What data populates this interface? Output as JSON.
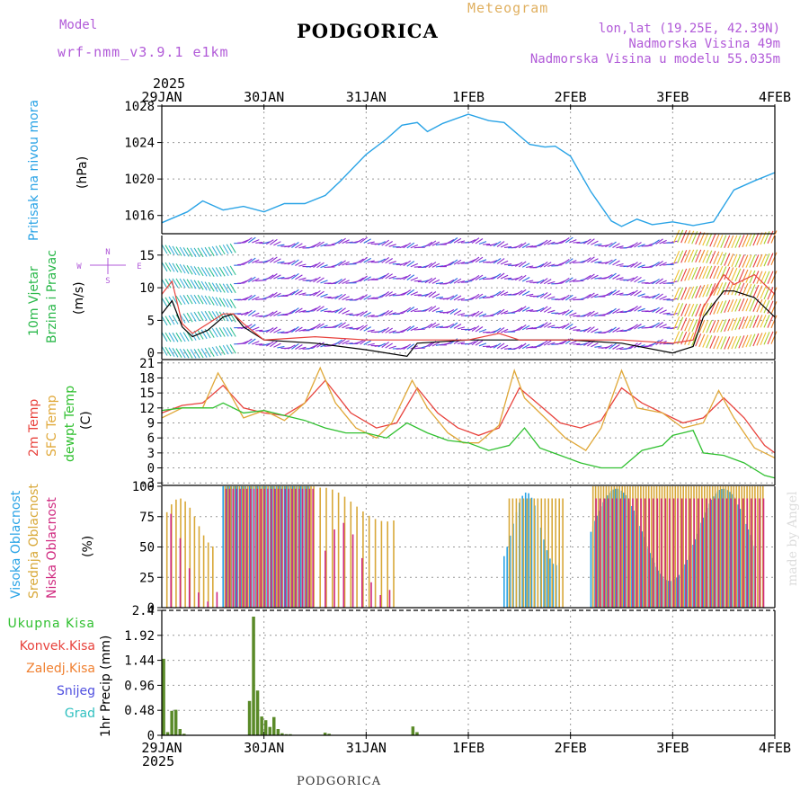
{
  "header": {
    "model_label": "Model",
    "model_name": "wrf-nmm_v3.9.1 e1km",
    "meteogram_label": "Meteogram",
    "station": "PODGORICA",
    "coords": "lon,lat (19.25E, 42.39N)",
    "altitude": "Nadmorska Visina 49m",
    "model_altitude": "Nadmorska Visina u modelu 55.035m",
    "year_top": "2025",
    "year_bottom": "2025",
    "footer_station": "PODGORICA",
    "watermark": "made by Angel"
  },
  "colors": {
    "pressure": "#29a3e6",
    "t2m": "#e8423c",
    "sfc": "#e0a838",
    "dew": "#30c030",
    "wind_speed": "#000000",
    "gust": "#e8423c",
    "high_cloud": "#29a3e6",
    "mid_cloud": "#d8a838",
    "low_cloud": "#d02a80",
    "precip_total": "#30c030",
    "precip_conv": "#e8423c",
    "precip_frz": "#f08030",
    "snow": "#5050e0",
    "graupel": "#30c0c0",
    "grid": "#999999"
  },
  "panels": {
    "pressure": {
      "ylabels": [
        "Pritisak na nivou mora",
        "(hPa)"
      ]
    },
    "wind": {
      "ylabels": [
        "10m Vjetar",
        "Brzina i Pravac",
        "(m/s)"
      ],
      "compass": {
        "N": "N",
        "S": "S",
        "E": "E",
        "W": "W"
      }
    },
    "temp": {
      "ylabels": [
        "2m Temp",
        "SFC Temp",
        "dewpt Temp",
        "(C)"
      ]
    },
    "cloud": {
      "ylabels": [
        "Visoka Oblacnost",
        "Srednja Oblacnost",
        "Niska Oblacnost",
        "(%)"
      ]
    },
    "precip": {
      "ylabels": [
        "1hr Precip (mm)"
      ],
      "legend": [
        "Ukupna Kisa",
        "Konvek.Kisa",
        "Zaledj.Kisa",
        "Snijeg",
        "Grad"
      ]
    }
  },
  "chart_data": [
    {
      "type": "line",
      "title": "Pritisak na nivou mora",
      "ylabel": "(hPa)",
      "x_ticks": [
        "29JAN",
        "30JAN",
        "31JAN",
        "1FEB",
        "2FEB",
        "3FEB",
        "4FEB"
      ],
      "ylim": [
        1014,
        1028
      ],
      "yticks": [
        1016,
        1020,
        1024,
        1028
      ],
      "x_days": [
        0,
        0.25,
        0.4,
        0.6,
        0.8,
        1.0,
        1.2,
        1.4,
        1.6,
        1.75,
        2.0,
        2.2,
        2.35,
        2.5,
        2.6,
        2.75,
        3.0,
        3.2,
        3.35,
        3.6,
        3.75,
        3.85,
        4.0,
        4.2,
        4.4,
        4.5,
        4.65,
        4.8,
        5.0,
        5.2,
        5.4,
        5.6,
        5.8,
        6.0
      ],
      "values": [
        1015.2,
        1016.4,
        1017.6,
        1016.6,
        1017.0,
        1016.4,
        1017.3,
        1017.3,
        1018.2,
        1019.8,
        1022.7,
        1024.4,
        1025.9,
        1026.2,
        1025.2,
        1026.1,
        1027.1,
        1026.4,
        1026.2,
        1023.8,
        1023.5,
        1023.6,
        1022.5,
        1018.6,
        1015.4,
        1014.8,
        1015.6,
        1015.0,
        1015.3,
        1014.9,
        1015.3,
        1018.8,
        1019.8,
        1020.7
      ]
    },
    {
      "type": "line",
      "title": "10m Vjetar Brzina i Pravac",
      "ylabel": "(m/s)",
      "ylim": [
        -1,
        18
      ],
      "yticks": [
        0,
        5,
        10,
        15
      ],
      "series": [
        {
          "name": "speed",
          "x_days": [
            0,
            0.1,
            0.2,
            0.3,
            0.45,
            0.6,
            0.7,
            0.8,
            1.0,
            1.5,
            2.0,
            2.4,
            2.5,
            3.0,
            3.5,
            4.0,
            4.5,
            5.0,
            5.2,
            5.3,
            5.5,
            5.6,
            5.8,
            6.0
          ],
          "values": [
            6.0,
            8.0,
            4.0,
            2.5,
            3.5,
            5.5,
            6.0,
            4.0,
            2.0,
            1.5,
            0.5,
            -0.5,
            1.5,
            2.0,
            2.0,
            2.0,
            1.5,
            0.0,
            1.0,
            5.5,
            9.5,
            9.5,
            8.5,
            5.5
          ]
        },
        {
          "name": "gust",
          "x_days": [
            0,
            0.1,
            0.2,
            0.3,
            0.45,
            0.6,
            0.7,
            0.8,
            1.0,
            1.5,
            2.0,
            2.5,
            3.0,
            3.3,
            3.5,
            4.0,
            4.5,
            5.0,
            5.2,
            5.3,
            5.5,
            5.6,
            5.8,
            6.0
          ],
          "values": [
            9.0,
            11.0,
            4.5,
            3.0,
            4.5,
            6.0,
            6.0,
            4.5,
            2.0,
            2.5,
            2.0,
            2.0,
            2.0,
            3.0,
            2.0,
            2.0,
            2.0,
            1.5,
            2.0,
            7.0,
            12.0,
            10.5,
            12.0,
            9.0
          ]
        }
      ]
    },
    {
      "type": "line",
      "title": "2m Temp / SFC Temp / dewpt Temp",
      "ylabel": "(C)",
      "ylim": [
        -3.5,
        21.5
      ],
      "yticks": [
        -3,
        0,
        3,
        6,
        9,
        12,
        15,
        18,
        21
      ],
      "series": [
        {
          "name": "2m Temp",
          "x_days": [
            0,
            0.2,
            0.4,
            0.6,
            0.8,
            1.0,
            1.2,
            1.4,
            1.6,
            1.85,
            2.1,
            2.3,
            2.5,
            2.7,
            2.9,
            3.1,
            3.3,
            3.5,
            3.7,
            3.9,
            4.1,
            4.3,
            4.5,
            4.7,
            4.9,
            5.1,
            5.3,
            5.5,
            5.7,
            5.9,
            6.0
          ],
          "values": [
            11.0,
            12.5,
            13.0,
            16.5,
            12.0,
            11.0,
            10.5,
            13.0,
            17.5,
            11.0,
            8.0,
            9.0,
            16.0,
            11.0,
            8.0,
            6.5,
            8.0,
            16.0,
            12.5,
            9.0,
            8.0,
            9.5,
            16.0,
            13.0,
            11.0,
            9.0,
            10.0,
            14.0,
            10.0,
            4.5,
            3.0
          ]
        },
        {
          "name": "SFC Temp",
          "x_days": [
            0,
            0.2,
            0.4,
            0.55,
            0.65,
            0.8,
            1.0,
            1.2,
            1.4,
            1.55,
            1.7,
            1.9,
            2.1,
            2.25,
            2.45,
            2.6,
            2.8,
            2.95,
            3.1,
            3.3,
            3.45,
            3.55,
            3.75,
            3.95,
            4.15,
            4.3,
            4.5,
            4.65,
            4.9,
            5.1,
            5.3,
            5.45,
            5.6,
            5.8,
            6.0
          ],
          "values": [
            10.0,
            12.0,
            12.0,
            19.0,
            15.5,
            10.0,
            11.5,
            9.5,
            13.0,
            20.0,
            13.0,
            8.0,
            6.0,
            9.0,
            17.5,
            12.0,
            7.0,
            5.0,
            5.0,
            8.5,
            19.5,
            14.0,
            10.0,
            6.0,
            3.5,
            8.0,
            19.5,
            12.0,
            11.0,
            8.0,
            9.0,
            15.5,
            10.0,
            4.0,
            2.0
          ]
        },
        {
          "name": "dewpt Temp",
          "x_days": [
            0,
            0.2,
            0.5,
            0.6,
            0.8,
            1.0,
            1.2,
            1.4,
            1.6,
            1.8,
            2.0,
            2.2,
            2.4,
            2.6,
            2.8,
            3.0,
            3.2,
            3.4,
            3.55,
            3.7,
            3.9,
            4.1,
            4.3,
            4.5,
            4.7,
            4.9,
            5.0,
            5.1,
            5.2,
            5.3,
            5.5,
            5.7,
            5.9,
            6.0
          ],
          "values": [
            11.5,
            12.0,
            12.0,
            13.0,
            11.0,
            11.5,
            10.5,
            9.5,
            8.0,
            7.0,
            7.0,
            6.0,
            9.0,
            7.0,
            5.5,
            5.0,
            3.5,
            4.5,
            8.0,
            4.0,
            2.5,
            1.0,
            0.0,
            0.0,
            3.5,
            4.5,
            6.5,
            7.0,
            7.5,
            3.0,
            2.5,
            1.0,
            -1.5,
            -2.0
          ]
        }
      ]
    },
    {
      "type": "bar",
      "title": "Visoka / Srednja / Niska Oblacnost",
      "ylabel": "(%)",
      "ylim": [
        0,
        100
      ],
      "yticks": [
        0,
        25,
        50,
        75,
        100
      ]
    },
    {
      "type": "bar",
      "title": "1hr Precip",
      "ylabel": "(mm)",
      "ylim": [
        0,
        2.4
      ],
      "yticks": [
        0,
        0.48,
        0.96,
        1.44,
        1.92,
        2.4
      ],
      "x_days": [
        0.02,
        0.06,
        0.1,
        0.14,
        0.18,
        0.22,
        0.9,
        0.86,
        0.94,
        0.98,
        1.02,
        1.06,
        1.1,
        1.14,
        1.18,
        1.22,
        1.26,
        1.6,
        1.64,
        2.46,
        2.5
      ],
      "values": [
        1.47,
        0.06,
        0.47,
        0.49,
        0.12,
        0.03,
        2.28,
        0.66,
        0.86,
        0.36,
        0.29,
        0.16,
        0.35,
        0.12,
        0.04,
        0.02,
        0.02,
        0.05,
        0.03,
        0.17,
        0.06
      ]
    }
  ]
}
